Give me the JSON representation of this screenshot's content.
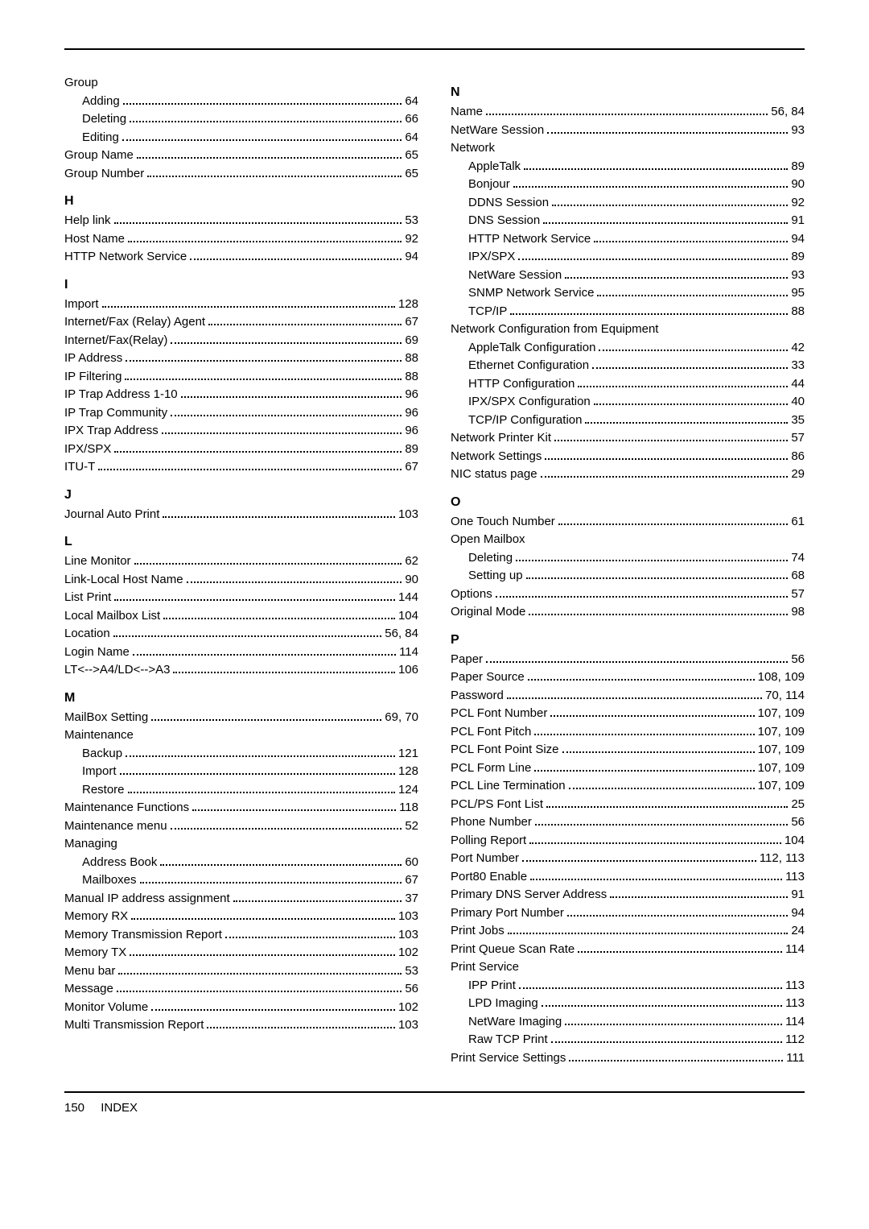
{
  "footer": {
    "page": "150",
    "section": "INDEX"
  },
  "left": [
    {
      "type": "group",
      "label": "Group"
    },
    {
      "type": "sub",
      "label": "Adding",
      "pg": "64"
    },
    {
      "type": "sub",
      "label": "Deleting",
      "pg": "66"
    },
    {
      "type": "sub",
      "label": "Editing",
      "pg": "64"
    },
    {
      "type": "entry",
      "label": "Group Name",
      "pg": "65"
    },
    {
      "type": "entry",
      "label": "Group Number",
      "pg": "65"
    },
    {
      "type": "head",
      "label": "H"
    },
    {
      "type": "entry",
      "label": "Help link",
      "pg": "53"
    },
    {
      "type": "entry",
      "label": "Host Name",
      "pg": "92"
    },
    {
      "type": "entry",
      "label": "HTTP Network Service",
      "pg": "94"
    },
    {
      "type": "head",
      "label": "I"
    },
    {
      "type": "entry",
      "label": "Import",
      "pg": "128"
    },
    {
      "type": "entry",
      "label": "Internet/Fax (Relay) Agent",
      "pg": "67"
    },
    {
      "type": "entry",
      "label": "Internet/Fax(Relay)",
      "pg": "69"
    },
    {
      "type": "entry",
      "label": "IP Address",
      "pg": "88"
    },
    {
      "type": "entry",
      "label": "IP Filtering",
      "pg": "88"
    },
    {
      "type": "entry",
      "label": "IP Trap Address 1-10",
      "pg": "96"
    },
    {
      "type": "entry",
      "label": "IP Trap Community",
      "pg": "96"
    },
    {
      "type": "entry",
      "label": "IPX Trap Address",
      "pg": "96"
    },
    {
      "type": "entry",
      "label": "IPX/SPX",
      "pg": "89"
    },
    {
      "type": "entry",
      "label": "ITU-T",
      "pg": "67"
    },
    {
      "type": "head",
      "label": "J"
    },
    {
      "type": "entry",
      "label": "Journal Auto Print",
      "pg": "103"
    },
    {
      "type": "head",
      "label": "L"
    },
    {
      "type": "entry",
      "label": "Line Monitor",
      "pg": "62"
    },
    {
      "type": "entry",
      "label": "Link-Local Host Name",
      "pg": "90"
    },
    {
      "type": "entry",
      "label": "List Print",
      "pg": "144"
    },
    {
      "type": "entry",
      "label": "Local Mailbox List",
      "pg": "104"
    },
    {
      "type": "entry",
      "label": "Location",
      "pg": "56, 84"
    },
    {
      "type": "entry",
      "label": "Login Name",
      "pg": "114"
    },
    {
      "type": "entry",
      "label": "LT<-->A4/LD<-->A3",
      "pg": "106"
    },
    {
      "type": "head",
      "label": "M"
    },
    {
      "type": "entry",
      "label": "MailBox Setting",
      "pg": "69, 70"
    },
    {
      "type": "group",
      "label": "Maintenance"
    },
    {
      "type": "sub",
      "label": "Backup",
      "pg": "121"
    },
    {
      "type": "sub",
      "label": "Import",
      "pg": "128"
    },
    {
      "type": "sub",
      "label": "Restore",
      "pg": "124"
    },
    {
      "type": "entry",
      "label": "Maintenance Functions",
      "pg": "118"
    },
    {
      "type": "entry",
      "label": "Maintenance menu",
      "pg": "52"
    },
    {
      "type": "group",
      "label": "Managing"
    },
    {
      "type": "sub",
      "label": "Address Book",
      "pg": "60"
    },
    {
      "type": "sub",
      "label": "Mailboxes",
      "pg": "67"
    },
    {
      "type": "entry",
      "label": "Manual IP address assignment",
      "pg": "37"
    },
    {
      "type": "entry",
      "label": "Memory RX",
      "pg": "103"
    },
    {
      "type": "entry",
      "label": "Memory Transmission Report",
      "pg": "103"
    },
    {
      "type": "entry",
      "label": "Memory TX",
      "pg": "102"
    },
    {
      "type": "entry",
      "label": "Menu bar",
      "pg": "53"
    },
    {
      "type": "entry",
      "label": "Message",
      "pg": "56"
    },
    {
      "type": "entry",
      "label": "Monitor Volume",
      "pg": "102"
    },
    {
      "type": "entry",
      "label": "Multi Transmission Report",
      "pg": "103"
    }
  ],
  "right": [
    {
      "type": "head",
      "label": "N"
    },
    {
      "type": "entry",
      "label": "Name",
      "pg": "56, 84"
    },
    {
      "type": "entry",
      "label": "NetWare Session",
      "pg": "93"
    },
    {
      "type": "group",
      "label": "Network"
    },
    {
      "type": "sub",
      "label": "AppleTalk",
      "pg": "89"
    },
    {
      "type": "sub",
      "label": "Bonjour",
      "pg": "90"
    },
    {
      "type": "sub",
      "label": "DDNS Session",
      "pg": "92"
    },
    {
      "type": "sub",
      "label": "DNS Session",
      "pg": "91"
    },
    {
      "type": "sub",
      "label": "HTTP Network Service",
      "pg": "94"
    },
    {
      "type": "sub",
      "label": "IPX/SPX",
      "pg": "89"
    },
    {
      "type": "sub",
      "label": "NetWare Session",
      "pg": "93"
    },
    {
      "type": "sub",
      "label": "SNMP Network Service",
      "pg": "95"
    },
    {
      "type": "sub",
      "label": "TCP/IP",
      "pg": "88"
    },
    {
      "type": "group",
      "label": "Network Configuration from Equipment"
    },
    {
      "type": "sub",
      "label": "AppleTalk Configuration",
      "pg": "42"
    },
    {
      "type": "sub",
      "label": "Ethernet Configuration",
      "pg": "33"
    },
    {
      "type": "sub",
      "label": "HTTP Configuration",
      "pg": "44"
    },
    {
      "type": "sub",
      "label": "IPX/SPX Configuration",
      "pg": "40"
    },
    {
      "type": "sub",
      "label": "TCP/IP Configuration",
      "pg": "35"
    },
    {
      "type": "entry",
      "label": "Network Printer Kit",
      "pg": "57"
    },
    {
      "type": "entry",
      "label": "Network Settings",
      "pg": "86"
    },
    {
      "type": "entry",
      "label": "NIC status page",
      "pg": "29"
    },
    {
      "type": "head",
      "label": "O"
    },
    {
      "type": "entry",
      "label": "One Touch Number",
      "pg": "61"
    },
    {
      "type": "group",
      "label": "Open Mailbox"
    },
    {
      "type": "sub",
      "label": "Deleting",
      "pg": "74"
    },
    {
      "type": "sub",
      "label": "Setting up",
      "pg": "68"
    },
    {
      "type": "entry",
      "label": "Options",
      "pg": "57"
    },
    {
      "type": "entry",
      "label": "Original Mode",
      "pg": "98"
    },
    {
      "type": "head",
      "label": "P"
    },
    {
      "type": "entry",
      "label": "Paper",
      "pg": "56"
    },
    {
      "type": "entry",
      "label": "Paper Source",
      "pg": "108, 109"
    },
    {
      "type": "entry",
      "label": "Password",
      "pg": "70, 114"
    },
    {
      "type": "entry",
      "label": "PCL Font Number",
      "pg": "107, 109"
    },
    {
      "type": "entry",
      "label": "PCL Font Pitch",
      "pg": "107, 109"
    },
    {
      "type": "entry",
      "label": "PCL Font Point Size",
      "pg": "107, 109"
    },
    {
      "type": "entry",
      "label": "PCL Form Line",
      "pg": "107, 109"
    },
    {
      "type": "entry",
      "label": "PCL Line Termination",
      "pg": "107, 109"
    },
    {
      "type": "entry",
      "label": "PCL/PS Font List",
      "pg": "25"
    },
    {
      "type": "entry",
      "label": "Phone Number",
      "pg": "56"
    },
    {
      "type": "entry",
      "label": "Polling Report",
      "pg": "104"
    },
    {
      "type": "entry",
      "label": "Port Number",
      "pg": "112, 113"
    },
    {
      "type": "entry",
      "label": "Port80 Enable",
      "pg": "113"
    },
    {
      "type": "entry",
      "label": "Primary DNS Server Address",
      "pg": "91"
    },
    {
      "type": "entry",
      "label": "Primary Port Number",
      "pg": "94"
    },
    {
      "type": "entry",
      "label": "Print Jobs",
      "pg": "24"
    },
    {
      "type": "entry",
      "label": "Print Queue Scan Rate",
      "pg": "114"
    },
    {
      "type": "group",
      "label": "Print Service"
    },
    {
      "type": "sub",
      "label": "IPP Print",
      "pg": "113"
    },
    {
      "type": "sub",
      "label": "LPD Imaging",
      "pg": "113"
    },
    {
      "type": "sub",
      "label": "NetWare Imaging",
      "pg": "114"
    },
    {
      "type": "sub",
      "label": "Raw TCP Print",
      "pg": "112"
    },
    {
      "type": "entry",
      "label": "Print Service Settings",
      "pg": "111"
    }
  ]
}
